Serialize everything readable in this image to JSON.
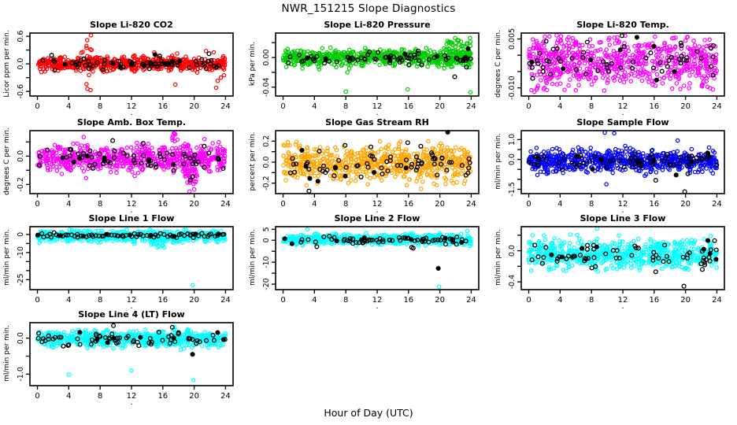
{
  "page": {
    "title": "NWR_151215  Slope Diagnostics",
    "xlabel": "Hour of Day (UTC)"
  },
  "chart_data": [
    {
      "type": "scatter",
      "title": "Slope Li-820 CO2",
      "ylabel": "Licor ppm per min.",
      "xlab": ".",
      "xrange": [
        0,
        24
      ],
      "xticks": [
        0,
        4,
        8,
        12,
        16,
        20,
        24
      ],
      "ylim": [
        -0.7,
        0.67
      ],
      "yticks": [
        {
          "v": 0.6,
          "label": "0.6"
        },
        {
          "v": 0.3,
          "label": ""
        },
        {
          "v": 0.0,
          "label": "0.0"
        },
        {
          "v": -0.3,
          "label": ""
        },
        {
          "v": -0.6,
          "label": "-0.6"
        }
      ],
      "series": [
        {
          "name": "all-data",
          "color": "#FF0000",
          "n": 620,
          "center": 0.005,
          "sd": 0.075,
          "clip": [
            -0.28,
            0.28
          ],
          "seed": 101,
          "clusters": [
            {
              "x0": 6.2,
              "x1": 7.0,
              "n": 14,
              "y0": -0.68,
              "y1": 0.63
            }
          ],
          "outliers": [
            [
              5.6,
              0.24
            ],
            [
              6.9,
              0.3
            ],
            [
              17.6,
              -0.45
            ],
            [
              21.5,
              0.28
            ],
            [
              22.8,
              -0.52
            ],
            [
              23.0,
              -0.37
            ],
            [
              23.4,
              -0.3
            ],
            [
              22.5,
              0.25
            ],
            [
              23.8,
              -0.25
            ]
          ]
        },
        {
          "name": "flagged",
          "color": "#000000",
          "n": 72,
          "center": -0.01,
          "sd": 0.05,
          "clip": [
            -0.18,
            0.2
          ],
          "seed": 201,
          "outliers": [
            [
              15.0,
              0.2
            ],
            [
              21.9,
              0.22
            ],
            [
              15.6,
              0.17
            ]
          ]
        }
      ]
    },
    {
      "type": "scatter",
      "title": "Slope Li-820 Pressure",
      "ylabel": "kPa per min.",
      "xlab": ".",
      "xrange": [
        0,
        24
      ],
      "xticks": [
        0,
        4,
        8,
        12,
        16,
        20,
        24
      ],
      "ylim": [
        -0.052,
        0.033
      ],
      "yticks": [
        {
          "v": 0.02,
          "label": ""
        },
        {
          "v": 0.0,
          "label": "0.00"
        },
        {
          "v": -0.02,
          "label": ""
        },
        {
          "v": -0.04,
          "label": "-0.04"
        }
      ],
      "series": [
        {
          "name": "all-data",
          "color": "#00CC00",
          "n": 600,
          "center": 0.0,
          "sd": 0.0055,
          "clip": [
            -0.016,
            0.014
          ],
          "seed": 102,
          "clusters": [
            {
              "x0": 20.5,
              "x1": 24,
              "n": 60,
              "y0": -0.015,
              "y1": 0.028
            }
          ],
          "outliers": [
            [
              8.0,
              -0.046
            ],
            [
              15.9,
              -0.043
            ],
            [
              23.9,
              -0.047
            ],
            [
              8.2,
              -0.02
            ],
            [
              4.6,
              -0.016
            ]
          ]
        },
        {
          "name": "flagged",
          "color": "#000000",
          "n": 70,
          "center": -0.001,
          "sd": 0.004,
          "clip": [
            -0.012,
            0.01
          ],
          "seed": 202,
          "outliers": [
            [
              21.9,
              -0.026
            ],
            [
              23.4,
              -0.013
            ],
            [
              23.6,
              0.012
            ]
          ]
        }
      ]
    },
    {
      "type": "scatter",
      "title": "Slope Li-820 Temp.",
      "ylabel": "degrees C per min.",
      "xlab": ".",
      "xrange": [
        0,
        24
      ],
      "xticks": [
        0,
        4,
        8,
        12,
        16,
        20,
        24
      ],
      "ylim": [
        -0.0125,
        0.0068
      ],
      "yticks": [
        {
          "v": 0.005,
          "label": "0.005"
        },
        {
          "v": 0.0,
          "label": ""
        },
        {
          "v": -0.005,
          "label": ""
        },
        {
          "v": -0.01,
          "label": "-0.010"
        }
      ],
      "series": [
        {
          "name": "all-data",
          "color": "#FF00FF",
          "n": 680,
          "center": -0.002,
          "sd": 0.0038,
          "clip": [
            -0.0112,
            0.0062
          ],
          "seed": 103,
          "outliers": [
            [
              0.7,
              -0.0112
            ],
            [
              1.1,
              -0.01
            ],
            [
              23.5,
              -0.0105
            ],
            [
              12.3,
              0.006
            ],
            [
              4.1,
              0.0058
            ],
            [
              16.1,
              0.0057
            ],
            [
              20.2,
              0.0055
            ]
          ]
        },
        {
          "name": "flagged",
          "color": "#000000",
          "n": 62,
          "center": -0.002,
          "sd": 0.003,
          "clip": [
            -0.009,
            0.0055
          ],
          "seed": 203,
          "outliers": [
            [
              11.9,
              0.006
            ],
            [
              13.8,
              0.0055
            ]
          ]
        }
      ]
    },
    {
      "type": "scatter",
      "title": "Slope Amb. Box Temp.",
      "ylabel": "degrees C per min.",
      "xlab": ".",
      "xrange": [
        0,
        24
      ],
      "xticks": [
        0,
        4,
        8,
        12,
        16,
        20,
        24
      ],
      "ylim": [
        -0.265,
        0.18
      ],
      "yticks": [
        {
          "v": 0.1,
          "label": ""
        },
        {
          "v": 0.0,
          "label": "0.0"
        },
        {
          "v": -0.1,
          "label": ""
        },
        {
          "v": -0.2,
          "label": "-0.2"
        }
      ],
      "series": [
        {
          "name": "all-data",
          "color": "#FF00FF",
          "n": 620,
          "center": -0.015,
          "sd": 0.045,
          "clip": [
            -0.13,
            0.1
          ],
          "seed": 104,
          "segments": [
            {
              "x0": 18.5,
              "x1": 20.4,
              "n": 45,
              "center": -0.11,
              "sd": 0.055,
              "clip": [
                -0.245,
                0.02
              ]
            }
          ],
          "clusters": [
            {
              "x0": 17.2,
              "x1": 17.9,
              "n": 10,
              "y0": 0.02,
              "y1": 0.17
            }
          ],
          "outliers": [
            [
              5.9,
              0.135
            ],
            [
              6.2,
              -0.155
            ],
            [
              19.4,
              -0.25
            ],
            [
              20.0,
              -0.235
            ],
            [
              21.3,
              0.12
            ],
            [
              12.4,
              -0.14
            ]
          ]
        },
        {
          "name": "flagged",
          "color": "#000000",
          "n": 66,
          "center": -0.02,
          "sd": 0.04,
          "clip": [
            -0.12,
            0.08
          ],
          "seed": 204,
          "outliers": [
            [
              9.6,
              0.11
            ],
            [
              19.5,
              -0.17
            ],
            [
              19.8,
              -0.145
            ],
            [
              13.5,
              0.09
            ]
          ]
        }
      ]
    },
    {
      "type": "scatter",
      "title": "Slope Gas Stream RH",
      "ylabel": "percent per min.",
      "xlab": ".",
      "xrange": [
        0,
        24
      ],
      "xticks": [
        0,
        4,
        8,
        12,
        16,
        20,
        24
      ],
      "ylim": [
        -0.3,
        0.3
      ],
      "yticks": [
        {
          "v": 0.2,
          "label": "0.2"
        },
        {
          "v": 0.1,
          "label": ""
        },
        {
          "v": 0.0,
          "label": "0.0"
        },
        {
          "v": -0.1,
          "label": ""
        },
        {
          "v": -0.2,
          "label": "-0.2"
        }
      ],
      "series": [
        {
          "name": "all-data",
          "color": "#FFA500",
          "n": 650,
          "center": -0.01,
          "sd": 0.085,
          "clip": [
            -0.235,
            0.2
          ],
          "seed": 105,
          "outliers": [
            [
              17.6,
              -0.255
            ],
            [
              23.1,
              -0.205
            ],
            [
              0.6,
              0.19
            ]
          ]
        },
        {
          "name": "flagged",
          "color": "#000000",
          "n": 72,
          "center": -0.02,
          "sd": 0.07,
          "clip": [
            -0.2,
            0.19
          ],
          "seed": 205,
          "outliers": [
            [
              21.0,
              0.285
            ],
            [
              3.3,
              -0.275
            ],
            [
              15.9,
              0.185
            ],
            [
              11.2,
              0.145
            ],
            [
              7.9,
              0.16
            ]
          ]
        }
      ]
    },
    {
      "type": "scatter",
      "title": "Slope Sample Flow",
      "ylabel": "ml/min per min.",
      "xlab": ".",
      "xrange": [
        0,
        24
      ],
      "xticks": [
        0,
        4,
        8,
        12,
        16,
        20,
        24
      ],
      "ylim": [
        -1.72,
        1.45
      ],
      "yticks": [
        {
          "v": 1.0,
          "label": "1.0"
        },
        {
          "v": 0.5,
          "label": ""
        },
        {
          "v": 0.0,
          "label": "0.0"
        },
        {
          "v": -0.5,
          "label": ""
        },
        {
          "v": -1.0,
          "label": ""
        },
        {
          "v": -1.5,
          "label": "-1.5"
        }
      ],
      "series": [
        {
          "name": "all-data",
          "color": "#0000FF",
          "n": 680,
          "center": -0.08,
          "sd": 0.28,
          "clip": [
            -0.75,
            0.62
          ],
          "seed": 106,
          "outliers": [
            [
              9.7,
              1.35
            ],
            [
              10.9,
              1.32
            ],
            [
              19.0,
              0.95
            ],
            [
              12.3,
              0.68
            ],
            [
              9.9,
              -1.25
            ],
            [
              14.8,
              -0.82
            ],
            [
              1.1,
              -0.78
            ],
            [
              2.3,
              -0.72
            ],
            [
              23.0,
              0.6
            ]
          ]
        },
        {
          "name": "flagged",
          "color": "#000000",
          "n": 70,
          "center": -0.1,
          "sd": 0.22,
          "clip": [
            -0.6,
            0.45
          ],
          "seed": 206,
          "outliers": [
            [
              19.9,
              -1.62
            ],
            [
              16.2,
              -1.05
            ],
            [
              18.8,
              -0.78
            ],
            [
              20.3,
              -0.72
            ]
          ]
        }
      ]
    },
    {
      "type": "scatter",
      "title": "Slope Line 1 Flow",
      "ylabel": "ml/min per min.",
      "xlab": ".",
      "xrange": [
        0,
        24
      ],
      "xticks": [
        0,
        4,
        8,
        12,
        16,
        20,
        24
      ],
      "ylim": [
        -30.5,
        4.3
      ],
      "yticks": [
        {
          "v": 0,
          "label": "0"
        },
        {
          "v": -5,
          "label": ""
        },
        {
          "v": -10,
          "label": "-10"
        },
        {
          "v": -15,
          "label": ""
        },
        {
          "v": -20,
          "label": ""
        },
        {
          "v": -25,
          "label": "-25"
        }
      ],
      "series": [
        {
          "name": "all-data",
          "color": "#00FFFF",
          "n": 650,
          "center": -0.9,
          "sd": 1.5,
          "clip": [
            -5.5,
            3.2
          ],
          "seed": 107,
          "segments": [
            {
              "x0": 14.5,
              "x1": 16.6,
              "n": 28,
              "center": -3.5,
              "sd": 1.6,
              "clip": [
                -7.5,
                0
              ]
            }
          ],
          "outliers": [
            [
              19.8,
              -28
            ],
            [
              4.1,
              2.8
            ],
            [
              16.2,
              -7.2
            ]
          ]
        },
        {
          "name": "flagged",
          "color": "#000000",
          "n": 75,
          "center": -0.5,
          "sd": 0.55,
          "clip": [
            -2.2,
            1.2
          ],
          "seed": 207,
          "even": true,
          "outliers": [
            [
              19.9,
              -1.8
            ]
          ]
        }
      ]
    },
    {
      "type": "scatter",
      "title": "Slope Line 2 Flow",
      "ylabel": "ml/min per min.",
      "xlab": ".",
      "xrange": [
        0,
        24
      ],
      "xticks": [
        0,
        4,
        8,
        12,
        16,
        20,
        24
      ],
      "ylim": [
        -22.5,
        6.2
      ],
      "yticks": [
        {
          "v": 5,
          "label": "5"
        },
        {
          "v": 0,
          "label": "0"
        },
        {
          "v": -5,
          "label": ""
        },
        {
          "v": -10,
          "label": "-10"
        },
        {
          "v": -15,
          "label": ""
        },
        {
          "v": -20,
          "label": "-20"
        }
      ],
      "series": [
        {
          "name": "all-data",
          "color": "#00FFFF",
          "n": 660,
          "center": 0.35,
          "sd": 1.1,
          "clip": [
            -2.6,
            3.4
          ],
          "seed": 108,
          "outliers": [
            [
              3.1,
              5.0
            ],
            [
              19.9,
              -21.2
            ],
            [
              23.5,
              4.2
            ]
          ]
        },
        {
          "name": "flagged",
          "color": "#000000",
          "n": 72,
          "center": 0.1,
          "sd": 1.0,
          "clip": [
            -2.8,
            2.6
          ],
          "seed": 208,
          "outliers": [
            [
              19.8,
              -12.8
            ],
            [
              16.6,
              -3.6
            ],
            [
              16.4,
              -3.2
            ],
            [
              4.3,
              -2.9
            ]
          ]
        }
      ]
    },
    {
      "type": "scatter",
      "title": "Slope Line 3 Flow",
      "ylabel": "ml/min per min.",
      "xlab": ".",
      "xrange": [
        0,
        24
      ],
      "xticks": [
        0,
        4,
        8,
        12,
        16,
        20,
        24
      ],
      "ylim": [
        -0.5,
        0.31
      ],
      "yticks": [
        {
          "v": 0.2,
          "label": ""
        },
        {
          "v": 0.0,
          "label": "0.0"
        },
        {
          "v": -0.2,
          "label": ""
        },
        {
          "v": -0.4,
          "label": "-0.4"
        }
      ],
      "series": [
        {
          "name": "all-data",
          "color": "#00FFFF",
          "n": 640,
          "center": -0.05,
          "sd": 0.095,
          "clip": [
            -0.27,
            0.22
          ],
          "seed": 109,
          "outliers": [
            [
              8.7,
              0.285
            ],
            [
              0.5,
              0.2
            ],
            [
              23.2,
              0.19
            ]
          ]
        },
        {
          "name": "flagged",
          "color": "#000000",
          "n": 68,
          "center": -0.06,
          "sd": 0.09,
          "clip": [
            -0.24,
            0.15
          ],
          "seed": 209,
          "outliers": [
            [
              19.8,
              -0.455
            ],
            [
              16.2,
              -0.27
            ],
            [
              23.7,
              0.13
            ]
          ]
        }
      ]
    },
    {
      "type": "scatter",
      "title": "Slope Line 4 (LT) Flow",
      "ylabel": "ml/min per min.",
      "xlab": ".",
      "xrange": [
        0,
        24
      ],
      "xticks": [
        0,
        4,
        8,
        12,
        16,
        20,
        24
      ],
      "ylim": [
        -1.32,
        0.43
      ],
      "yticks": [
        {
          "v": 0.0,
          "label": "0.0"
        },
        {
          "v": -0.5,
          "label": ""
        },
        {
          "v": -1.0,
          "label": "-1.0"
        }
      ],
      "series": [
        {
          "name": "all-data",
          "color": "#00FFFF",
          "n": 640,
          "center": -0.03,
          "sd": 0.11,
          "clip": [
            -0.33,
            0.25
          ],
          "seed": 110,
          "outliers": [
            [
              4.0,
              -1.01
            ],
            [
              12.0,
              -0.9
            ],
            [
              19.9,
              -1.17
            ],
            [
              17.5,
              0.3
            ]
          ]
        },
        {
          "name": "flagged",
          "color": "#000000",
          "n": 70,
          "center": -0.02,
          "sd": 0.1,
          "clip": [
            -0.28,
            0.28
          ],
          "seed": 210,
          "outliers": [
            [
              9.7,
              0.35
            ],
            [
              17.2,
              0.3
            ],
            [
              19.8,
              -0.45
            ],
            [
              3.9,
              -0.2
            ]
          ]
        }
      ]
    }
  ]
}
